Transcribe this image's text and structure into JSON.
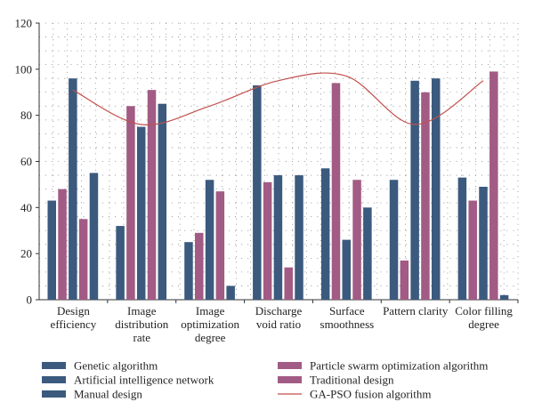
{
  "chart_data": {
    "type": "bar",
    "categories": [
      [
        "Design",
        "efficiency"
      ],
      [
        "Image",
        "distribution",
        "rate"
      ],
      [
        "Image",
        "optimization",
        "degree"
      ],
      [
        "Discharge",
        "void ratio"
      ],
      [
        "Surface",
        "smoothness"
      ],
      [
        "Pattern clarity"
      ],
      [
        "Color filling",
        "degree"
      ]
    ],
    "ylim": [
      0,
      120
    ],
    "yticks": [
      0,
      20,
      40,
      60,
      80,
      100,
      120
    ],
    "grid": "dotted",
    "series": [
      {
        "name": "Genetic algorithm",
        "kind": "bar",
        "color": "#3b5a7e",
        "values": [
          43,
          32,
          25,
          93,
          57,
          52,
          53
        ]
      },
      {
        "name": "Particle swarm optimization algorithm",
        "kind": "bar",
        "color": "#a25b84",
        "values": [
          48,
          84,
          29,
          51,
          94,
          17,
          43
        ]
      },
      {
        "name": "Artificial intelligence network",
        "kind": "bar",
        "color": "#3b5a7e",
        "values": [
          96,
          75,
          52,
          54,
          26,
          95,
          49
        ]
      },
      {
        "name": "Traditional design",
        "kind": "bar",
        "color": "#a25b84",
        "values": [
          35,
          91,
          47,
          14,
          52,
          90,
          99
        ]
      },
      {
        "name": "Manual design",
        "kind": "bar",
        "color": "#3b5a7e",
        "values": [
          55,
          85,
          6,
          54,
          40,
          96,
          2
        ]
      },
      {
        "name": "GA-PSO fusion algorithm",
        "kind": "line",
        "color": "#c0504d",
        "values": [
          91,
          76,
          84,
          95,
          97,
          76,
          95
        ]
      }
    ],
    "legend": {
      "placement": "bottom",
      "left_column": [
        "Genetic algorithm",
        "Artificial intelligence network",
        "Manual design"
      ],
      "right_column": [
        "Particle swarm optimization algorithm",
        "Traditional design",
        "GA-PSO fusion algorithm"
      ]
    }
  }
}
